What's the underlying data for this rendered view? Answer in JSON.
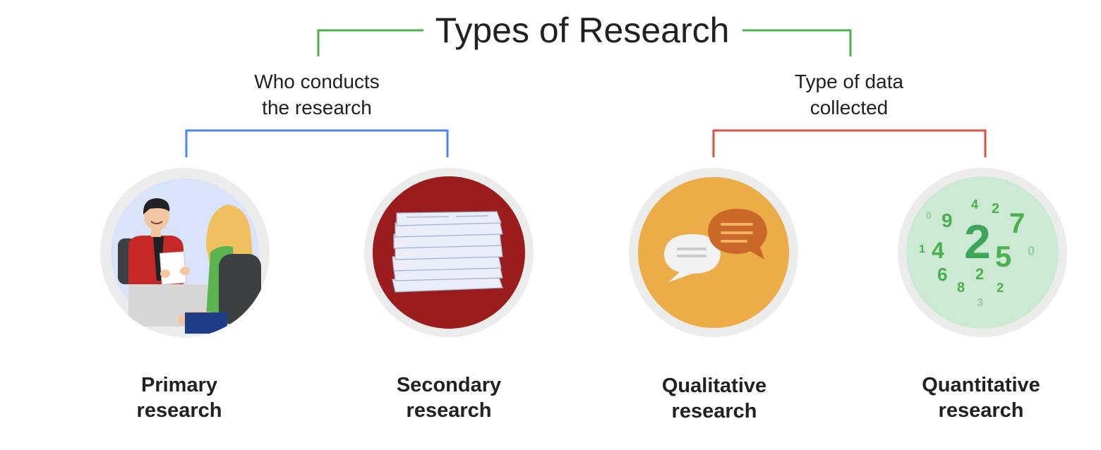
{
  "title": "Types of Research",
  "groups": [
    {
      "label_line1": "Who conducts",
      "label_line2": "the research",
      "bracket_color": "#4a86e8",
      "items": [
        {
          "line1": "Primary",
          "line2": "research",
          "icon": "interview-illustration"
        },
        {
          "line1": "Secondary",
          "line2": "research",
          "icon": "paper-stack-illustration"
        }
      ]
    },
    {
      "label_line1": "Type of data",
      "label_line2": "collected",
      "bracket_color": "#d9533f",
      "items": [
        {
          "line1": "Qualitative",
          "line2": "research",
          "icon": "speech-bubbles-illustration"
        },
        {
          "line1": "Quantitative",
          "line2": "research",
          "icon": "numbers-illustration"
        }
      ]
    }
  ],
  "title_bracket_color": "#4caf50",
  "numbers_graphic": [
    "0",
    "9",
    "4",
    "2",
    "7",
    "1",
    "4",
    "2",
    "5",
    "0",
    "6",
    "2",
    "8",
    "2",
    "3"
  ]
}
